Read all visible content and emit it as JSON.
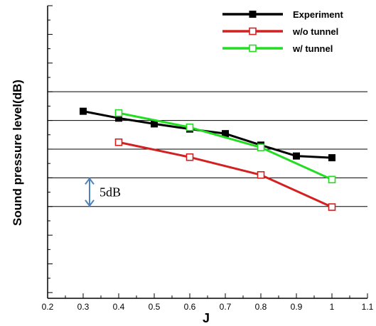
{
  "chart_data": {
    "type": "line",
    "xlabel": "J",
    "ylabel": "Sound pressure level(dB)",
    "xlim": [
      0.2,
      1.1
    ],
    "x_ticks": [
      "0.2",
      "0.3",
      "0.4",
      "0.5",
      "0.6",
      "0.7",
      "0.8",
      "0.9",
      "1",
      "1.1"
    ],
    "ylim": [
      -36,
      15
    ],
    "y_gridlines": [
      0,
      -5,
      -10,
      -15,
      -20
    ],
    "y_tick_labels_shown": false,
    "grid": "horizontal",
    "legend_position": "top-right",
    "series": [
      {
        "name": "Experiment",
        "color": "#000000",
        "marker": "filled-square",
        "x": [
          0.3,
          0.4,
          0.5,
          0.6,
          0.7,
          0.8,
          0.9,
          1.0
        ],
        "y": [
          -3.4,
          -4.6,
          -5.6,
          -6.5,
          -7.3,
          -9.3,
          -11.2,
          -11.5
        ]
      },
      {
        "name": "w/o tunnel",
        "color": "#d42020",
        "marker": "open-square",
        "x": [
          0.4,
          0.6,
          0.8,
          1.0
        ],
        "y": [
          -8.8,
          -11.4,
          -14.5,
          -20.1
        ]
      },
      {
        "name": "w/ tunnel",
        "color": "#22dd22",
        "marker": "open-square",
        "x": [
          0.4,
          0.6,
          0.8,
          1.0
        ],
        "y": [
          -3.7,
          -6.2,
          -9.7,
          -15.3
        ]
      }
    ],
    "annotations": [
      {
        "text": "5dB",
        "arrow": "double-headed",
        "arrow_color": "#4f81bd",
        "span_db": 5,
        "from_y": -15,
        "to_y": -20
      }
    ]
  }
}
